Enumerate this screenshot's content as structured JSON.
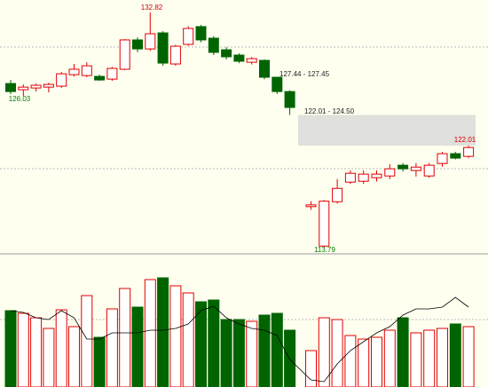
{
  "chart_data": [
    {
      "type": "candlestick",
      "open": [
        127.05,
        126.55,
        126.69,
        126.76,
        126.84,
        127.77,
        127.7,
        127.63,
        127.41,
        128.21,
        130.59,
        129.86,
        131.16,
        128.64,
        130.23,
        131.67,
        130.73,
        129.79,
        129.36,
        128.78,
        128.93,
        127.56,
        126.4,
        117.06,
        113.86,
        117.46,
        119.05,
        119.12,
        119.41,
        119.55,
        120.42,
        119.99,
        119.55,
        120.56,
        121.36,
        121.14
      ],
      "high": [
        127.34,
        126.98,
        127.05,
        127.12,
        127.99,
        128.64,
        128.78,
        127.77,
        128.4,
        130.66,
        130.8,
        132.82,
        131.3,
        130.2,
        131.7,
        131.8,
        130.9,
        130.0,
        129.5,
        129.2,
        129.0,
        127.6,
        126.5,
        117.5,
        117.6,
        119.3,
        120.0,
        120.0,
        120.0,
        120.5,
        120.6,
        120.6,
        120.6,
        121.5,
        121.5,
        122.01
      ],
      "low": [
        126.19,
        126.03,
        126.4,
        126.33,
        126.69,
        127.63,
        127.56,
        127.27,
        127.27,
        128.14,
        129.6,
        129.7,
        128.5,
        128.5,
        130.1,
        130.4,
        129.36,
        129.0,
        128.7,
        128.6,
        127.4,
        126.2,
        124.5,
        116.8,
        113.79,
        117.3,
        118.9,
        118.9,
        119.1,
        119.3,
        119.9,
        119.5,
        119.4,
        120.3,
        120.9,
        121.0
      ],
      "close": [
        126.4,
        126.76,
        126.91,
        126.98,
        127.84,
        128.21,
        128.49,
        127.34,
        128.28,
        130.59,
        129.86,
        131.09,
        128.71,
        130.08,
        131.52,
        130.59,
        129.58,
        129.22,
        128.86,
        129.07,
        127.56,
        126.4,
        125.11,
        117.2,
        117.5,
        118.54,
        119.77,
        119.7,
        119.7,
        120.13,
        120.13,
        120.27,
        120.42,
        121.36,
        121.0,
        121.86
      ],
      "ylim": [
        113.3,
        133.83
      ],
      "up_color": "#e00000",
      "down_color": "#006400",
      "gap_range": [
        122.01,
        124.5
      ],
      "annotations": [
        "132.82",
        "126.03",
        "127.44 - 127.45",
        "122.01 - 124.50",
        "122.01",
        "113.79"
      ]
    },
    {
      "type": "bar",
      "values": [
        86,
        83,
        78,
        66,
        87,
        68,
        103,
        56,
        88,
        111,
        90,
        121,
        123,
        114,
        106,
        96,
        98,
        76,
        76,
        74,
        81,
        83,
        64,
        41,
        78,
        76,
        58,
        54,
        56,
        64,
        78,
        61,
        64,
        66,
        71,
        68
      ],
      "line_values": [
        86,
        84,
        78,
        76,
        86,
        78,
        54,
        54,
        61,
        61,
        61,
        64,
        64,
        66,
        71,
        86,
        91,
        78,
        71,
        66,
        64,
        58,
        31,
        8,
        6,
        26,
        41,
        51,
        61,
        68,
        81,
        88,
        88,
        90,
        101,
        90
      ],
      "line_color": "#000000",
      "ylim": [
        0,
        150
      ]
    }
  ]
}
